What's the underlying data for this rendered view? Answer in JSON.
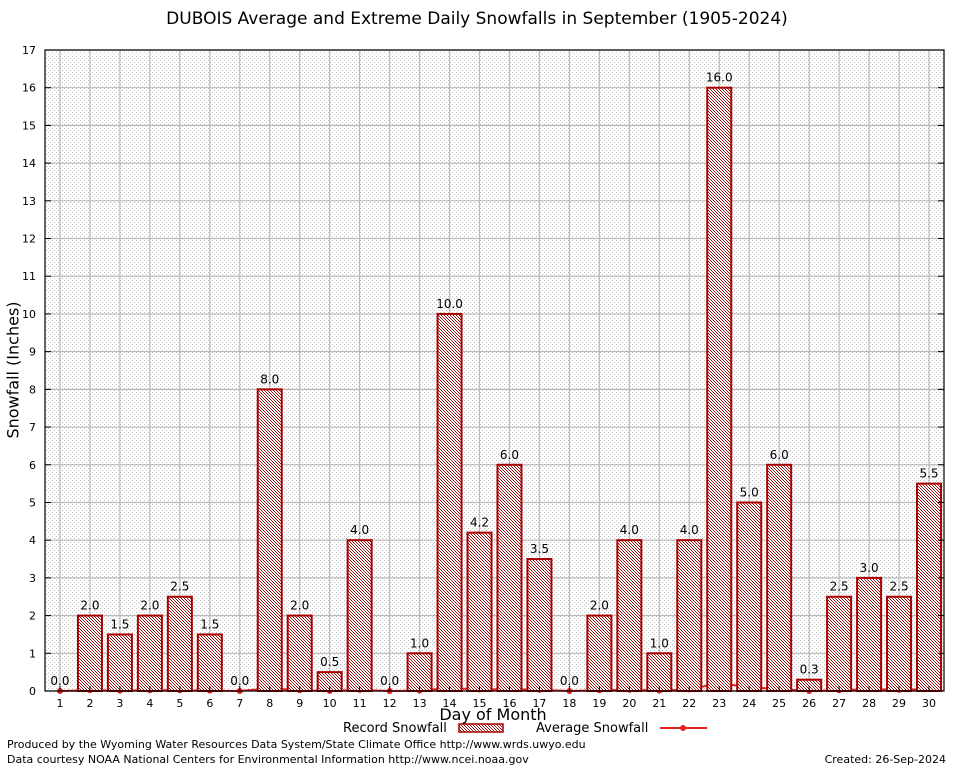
{
  "chart_data": {
    "type": "bar",
    "title": "DUBOIS Average and Extreme Daily Snowfalls in September (1905-2024)",
    "xlabel": "Day of Month",
    "ylabel": "Snowfall (Inches)",
    "ylim": [
      0,
      17
    ],
    "yticks": [
      "0",
      "1",
      "2",
      "3",
      "4",
      "5",
      "6",
      "7",
      "8",
      "9",
      "10",
      "11",
      "12",
      "13",
      "14",
      "15",
      "16",
      "17"
    ],
    "grid": true,
    "categories": [
      "1",
      "2",
      "3",
      "4",
      "5",
      "6",
      "7",
      "8",
      "9",
      "10",
      "11",
      "12",
      "13",
      "14",
      "15",
      "16",
      "17",
      "18",
      "19",
      "20",
      "21",
      "22",
      "23",
      "24",
      "25",
      "26",
      "27",
      "28",
      "29",
      "30"
    ],
    "series": [
      {
        "name": "Record Snowfall",
        "type": "bar",
        "values": [
          0.0,
          2.0,
          1.5,
          2.0,
          2.5,
          1.5,
          0.0,
          8.0,
          2.0,
          0.5,
          4.0,
          0.0,
          1.0,
          10.0,
          4.2,
          6.0,
          3.5,
          0.0,
          2.0,
          4.0,
          1.0,
          4.0,
          16.0,
          5.0,
          6.0,
          0.3,
          2.5,
          3.0,
          2.5,
          5.5
        ],
        "labels": [
          "0.0",
          "2.0",
          "1.5",
          "2.0",
          "2.5",
          "1.5",
          "0.0",
          "8.0",
          "2.0",
          "0.5",
          "4.0",
          "0.0",
          "1.0",
          "10.0",
          "4.2",
          "6.0",
          "3.5",
          "0.0",
          "2.0",
          "4.0",
          "1.0",
          "4.0",
          "16.0",
          "5.0",
          "6.0",
          "0.3",
          "2.5",
          "3.0",
          "2.5",
          "5.5"
        ]
      },
      {
        "name": "Average Snowfall",
        "type": "line",
        "values": [
          0.0,
          0.02,
          0.01,
          0.02,
          0.02,
          0.01,
          0.0,
          0.07,
          0.02,
          0.0,
          0.03,
          0.0,
          0.01,
          0.08,
          0.04,
          0.05,
          0.03,
          0.0,
          0.02,
          0.03,
          0.01,
          0.04,
          0.21,
          0.1,
          0.05,
          0.0,
          0.02,
          0.05,
          0.03,
          0.05
        ]
      }
    ],
    "legend": "bottom",
    "colors": {
      "bar_edge": "#aa0000",
      "average_line": "#e82020",
      "grid": "#bbbbbb"
    }
  },
  "legend": {
    "record_label": "Record Snowfall",
    "average_label": "Average Snowfall"
  },
  "footer": {
    "produced_by": "Produced by the Wyoming Water Resources Data System/State Climate Office http://www.wrds.uwyo.edu",
    "courtesy": "Data courtesy NOAA National Centers for Environmental Information http://www.ncei.noaa.gov",
    "created": "Created:  26-Sep-2024"
  }
}
